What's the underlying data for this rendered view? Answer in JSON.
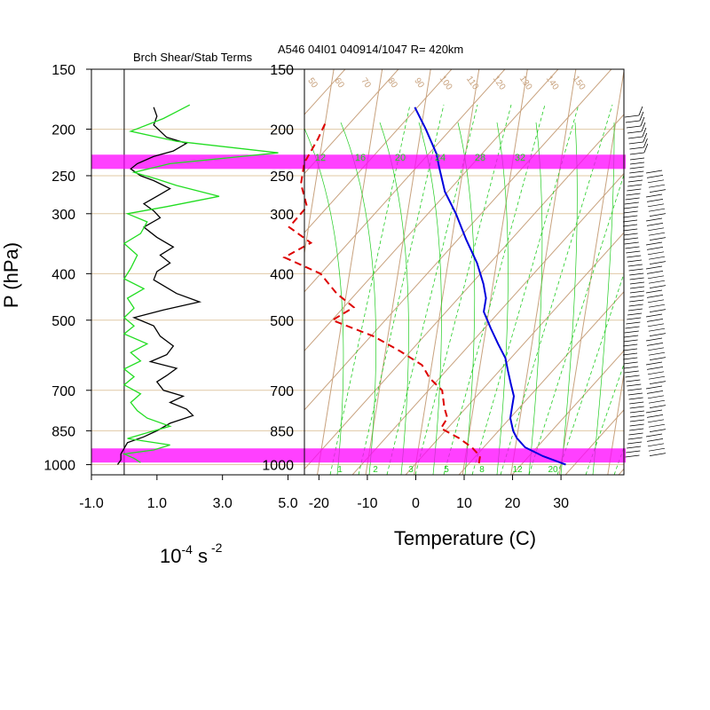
{
  "header": {
    "left_title": "Brch Shear/Stab Terms",
    "right_title": "A546 04I01 040914/1047 R= 420km"
  },
  "colors": {
    "band": "#ff00ff",
    "isobar": "#e0c9a6",
    "isotherm": "#c8a27e",
    "mixing": "#22cc22",
    "temperature": "#0000dd",
    "dewpoint": "#dd0000",
    "shear": "#000000",
    "stability": "#22dd22"
  },
  "chart_data": [
    {
      "type": "line",
      "title": "Brch Shear/Stab Terms",
      "xlabel": "10",
      "xlabel_exp": "-4",
      "xlabel_unit": "s",
      "xlabel_unit_exp": "-2",
      "ylabel": "P (hPa)",
      "y_log_scale": true,
      "ylim": [
        1050,
        150
      ],
      "xlim": [
        -1.0,
        5.5
      ],
      "xtick_labels": [
        "-1.0",
        "1.0",
        "3.0",
        "5.0"
      ],
      "xticks": [
        -1.0,
        1.0,
        3.0,
        5.0
      ],
      "ytick_labels": [
        "150",
        "200",
        "250",
        "300",
        "400",
        "500",
        "700",
        "850",
        "1000"
      ],
      "yticks": [
        150,
        200,
        250,
        300,
        400,
        500,
        700,
        850,
        1000
      ],
      "highlight_bands_hpa": [
        [
          226,
          242
        ],
        [
          925,
          990
        ]
      ],
      "series": [
        {
          "color": "black",
          "points": [
            [
              0.9,
              180
            ],
            [
              1.0,
              188
            ],
            [
              0.9,
              196
            ],
            [
              1.3,
              208
            ],
            [
              1.9,
              214
            ],
            [
              1.5,
              222
            ],
            [
              0.9,
              228
            ],
            [
              0.4,
              236
            ],
            [
              0.2,
              242
            ],
            [
              0.5,
              250
            ],
            [
              0.9,
              256
            ],
            [
              1.4,
              266
            ],
            [
              1.0,
              276
            ],
            [
              0.6,
              286
            ],
            [
              0.9,
              296
            ],
            [
              1.1,
              306
            ],
            [
              0.6,
              320
            ],
            [
              1.0,
              336
            ],
            [
              1.5,
              352
            ],
            [
              1.1,
              366
            ],
            [
              1.4,
              380
            ],
            [
              1.0,
              396
            ],
            [
              0.9,
              412
            ],
            [
              1.6,
              440
            ],
            [
              2.3,
              458
            ],
            [
              1.2,
              476
            ],
            [
              0.3,
              494
            ],
            [
              0.9,
              514
            ],
            [
              1.1,
              540
            ],
            [
              1.5,
              566
            ],
            [
              1.3,
              590
            ],
            [
              0.8,
              610
            ],
            [
              1.6,
              630
            ],
            [
              1.3,
              652
            ],
            [
              1.0,
              672
            ],
            [
              1.2,
              700
            ],
            [
              1.8,
              720
            ],
            [
              1.4,
              742
            ],
            [
              1.9,
              766
            ],
            [
              2.1,
              790
            ],
            [
              1.4,
              820
            ],
            [
              1.0,
              850
            ],
            [
              0.6,
              875
            ],
            [
              0.1,
              900
            ],
            [
              0.0,
              925
            ],
            [
              -0.1,
              950
            ],
            [
              -0.1,
              978
            ],
            [
              -0.2,
              1000
            ]
          ]
        },
        {
          "color": "green",
          "points": [
            [
              2.0,
              178
            ],
            [
              1.2,
              190
            ],
            [
              0.2,
              202
            ],
            [
              1.6,
              212
            ],
            [
              4.7,
              224
            ],
            [
              1.4,
              236
            ],
            [
              0.3,
              246
            ],
            [
              1.0,
              254
            ],
            [
              1.6,
              262
            ],
            [
              2.9,
              276
            ],
            [
              1.3,
              290
            ],
            [
              0.1,
              300
            ],
            [
              0.7,
              312
            ],
            [
              0.5,
              330
            ],
            [
              0.0,
              346
            ],
            [
              0.4,
              366
            ],
            [
              0.2,
              390
            ],
            [
              0.0,
              410
            ],
            [
              0.6,
              430
            ],
            [
              0.1,
              450
            ],
            [
              0.3,
              472
            ],
            [
              0.0,
              494
            ],
            [
              0.3,
              514
            ],
            [
              0.0,
              534
            ],
            [
              0.7,
              560
            ],
            [
              0.2,
              584
            ],
            [
              0.5,
              608
            ],
            [
              0.0,
              632
            ],
            [
              0.3,
              656
            ],
            [
              0.0,
              682
            ],
            [
              0.5,
              712
            ],
            [
              0.2,
              742
            ],
            [
              0.4,
              772
            ],
            [
              0.7,
              800
            ],
            [
              1.4,
              832
            ],
            [
              0.7,
              858
            ],
            [
              0.1,
              882
            ],
            [
              1.4,
              910
            ],
            [
              0.9,
              932
            ],
            [
              0.0,
              950
            ],
            [
              0.3,
              970
            ],
            [
              0.5,
              990
            ]
          ]
        }
      ]
    },
    {
      "type": "line",
      "title": "A546 04I01 040914/1047 R= 420km",
      "xlabel": "Temperature (C)",
      "ylabel": "P (hPa)",
      "y_log_scale": true,
      "ylim": [
        1050,
        150
      ],
      "xlim": [
        -23,
        43
      ],
      "xtick_labels": [
        "-20",
        "-10",
        "0",
        "10",
        "20",
        "30"
      ],
      "xticks": [
        -20,
        -10,
        0,
        10,
        20,
        30
      ],
      "ytick_labels": [
        "150",
        "200",
        "250",
        "300",
        "400",
        "500",
        "700",
        "850",
        "1000"
      ],
      "yticks": [
        150,
        200,
        250,
        300,
        400,
        500,
        700,
        850,
        1000
      ],
      "mixing_ratio_labels": [
        "12",
        "16",
        "20",
        "24",
        "28",
        "32"
      ],
      "mixing_ratio_bottom_labels": [
        "1",
        "2",
        "3",
        "5",
        "8",
        "12",
        "20"
      ],
      "theta_labels": [
        "50",
        "60",
        "70",
        "80",
        "90",
        "100",
        "110",
        "120",
        "130",
        "140",
        "150"
      ],
      "highlight_bands_hpa": [
        [
          226,
          242
        ],
        [
          925,
          990
        ]
      ],
      "series": [
        {
          "name": "Temperature",
          "color": "blue",
          "style": "solid",
          "points": [
            [
              -12,
              180
            ],
            [
              -9,
              200
            ],
            [
              -6,
              225
            ],
            [
              -5,
              240
            ],
            [
              -3,
              270
            ],
            [
              0,
              300
            ],
            [
              3,
              340
            ],
            [
              6,
              380
            ],
            [
              8,
              420
            ],
            [
              9,
              450
            ],
            [
              9,
              480
            ],
            [
              11,
              520
            ],
            [
              13,
              560
            ],
            [
              15,
              600
            ],
            [
              16,
              640
            ],
            [
              17,
              680
            ],
            [
              18,
              720
            ],
            [
              18,
              760
            ],
            [
              18,
              800
            ],
            [
              19,
              850
            ],
            [
              20,
              880
            ],
            [
              22,
              920
            ],
            [
              26,
              960
            ],
            [
              31,
              1000
            ]
          ]
        },
        {
          "name": "Dewpoint",
          "color": "red",
          "style": "dashed",
          "points": [
            [
              -30,
              195
            ],
            [
              -31,
              210
            ],
            [
              -33,
              235
            ],
            [
              -33,
              260
            ],
            [
              -31,
              290
            ],
            [
              -34,
              320
            ],
            [
              -29,
              345
            ],
            [
              -34,
              370
            ],
            [
              -26,
              400
            ],
            [
              -22,
              440
            ],
            [
              -18,
              470
            ],
            [
              -22,
              500
            ],
            [
              -13,
              540
            ],
            [
              -7,
              580
            ],
            [
              -2,
              620
            ],
            [
              0,
              660
            ],
            [
              3,
              700
            ],
            [
              4,
              760
            ],
            [
              5,
              800
            ],
            [
              4,
              840
            ],
            [
              8,
              880
            ],
            [
              11,
              920
            ],
            [
              13,
              960
            ],
            [
              13,
              1000
            ]
          ]
        }
      ]
    }
  ]
}
